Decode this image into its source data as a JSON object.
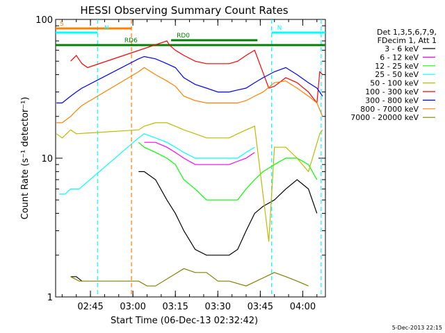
{
  "chart_data": {
    "type": "line",
    "title": "HESSI Observing Summary Count Rates",
    "xlabel": "Start Time (06-Dec-13 02:32:42)",
    "ylabel": "Count Rate (s⁻¹ detector⁻¹)",
    "x_range_minutes_utc": [
      "02:32:42",
      "04:08:00"
    ],
    "ylim": [
      1,
      100
    ],
    "yscale": "log",
    "x_tick_labels": [
      "02:45",
      "03:00",
      "03:15",
      "03:30",
      "03:45",
      "04:00"
    ],
    "y_tick_labels": [
      "1",
      "10",
      "100"
    ],
    "legend": {
      "position": "right",
      "header": [
        "Det 1,3,5,6,7,9,",
        "FDecim 1, Att 1"
      ]
    },
    "series": [
      {
        "name": "3 - 6 keV",
        "color": "#000000",
        "x": [
          "02:38",
          "02:40",
          "02:42",
          "02:45",
          "02:50",
          "02:55",
          "02:58",
          "03:02",
          "03:04",
          "03:08",
          "03:12",
          "03:15",
          "03:18",
          "03:22",
          "03:26",
          "03:30",
          "03:34",
          "03:37",
          "03:40",
          "03:43",
          "03:46",
          "03:50",
          "03:54",
          "03:58",
          "04:02",
          "04:05"
        ],
        "y": [
          1.4,
          1.4,
          1.3,
          null,
          null,
          null,
          null,
          8,
          8,
          7,
          5,
          4,
          3,
          2.2,
          2,
          2,
          2,
          2.2,
          3,
          4,
          4.5,
          5,
          6,
          7,
          6,
          4
        ]
      },
      {
        "name": "6 - 12 keV",
        "color": "#ff00ff",
        "x": [
          "03:04",
          "03:08",
          "03:12",
          "03:15",
          "03:18",
          "03:22",
          "03:26",
          "03:30",
          "03:34",
          "03:37",
          "03:40",
          "03:43"
        ],
        "y": [
          13,
          13,
          12,
          11,
          10,
          9,
          9,
          9,
          9,
          9.5,
          10,
          11
        ]
      },
      {
        "name": "12 - 25 keV",
        "color": "#00ff00",
        "x": [
          "03:02",
          "03:04",
          "03:08",
          "03:12",
          "03:15",
          "03:18",
          "03:22",
          "03:26",
          "03:30",
          "03:34",
          "03:37",
          "03:40",
          "03:43",
          "03:46",
          "03:50",
          "03:54",
          "03:58",
          "04:02",
          "04:05"
        ],
        "y": [
          13,
          12,
          11,
          10,
          9,
          7,
          6,
          5,
          5,
          5,
          5,
          6,
          7,
          8,
          9,
          10,
          10,
          9,
          7
        ]
      },
      {
        "name": "25 - 50 keV",
        "color": "#00ffff",
        "x": [
          "02:34",
          "02:36",
          "02:38",
          "02:41",
          "03:02",
          "03:04",
          "03:08",
          "03:12",
          "03:15",
          "03:18",
          "03:22",
          "03:26",
          "03:30",
          "03:34",
          "03:37",
          "03:40",
          "03:43"
        ],
        "y": [
          5.5,
          5.5,
          6,
          6,
          14,
          15,
          14,
          13,
          12,
          11,
          10,
          10,
          10,
          10,
          10,
          11,
          12
        ]
      },
      {
        "name": "50 - 100 keV",
        "color": "#bbbb00",
        "x": [
          "02:33",
          "02:35",
          "02:38",
          "02:40",
          "03:02",
          "03:04",
          "03:08",
          "03:12",
          "03:15",
          "03:18",
          "03:22",
          "03:26",
          "03:30",
          "03:34",
          "03:37",
          "03:40",
          "03:43",
          "03:48",
          "03:50",
          "03:54",
          "03:58",
          "04:02",
          "04:06",
          "04:07"
        ],
        "y": [
          15,
          14,
          16,
          15,
          16,
          17,
          18,
          18,
          17,
          16,
          15,
          14,
          14,
          14,
          15,
          16,
          17,
          2.5,
          12,
          12,
          10,
          8,
          15,
          16
        ]
      },
      {
        "name": "100 - 300 keV",
        "color": "#ff0000",
        "x": [
          "02:38",
          "02:40",
          "02:42",
          "02:44",
          "03:12",
          "03:13",
          "03:15",
          "03:18",
          "03:22",
          "03:26",
          "03:30",
          "03:34",
          "03:37",
          "03:40",
          "03:43",
          "03:48",
          "03:50",
          "03:54",
          "03:58",
          "04:02",
          "04:05",
          "04:06",
          "04:07"
        ],
        "y": [
          50,
          55,
          48,
          45,
          70,
          65,
          60,
          55,
          50,
          48,
          48,
          48,
          50,
          55,
          60,
          32,
          33,
          38,
          35,
          30,
          25,
          42,
          40
        ]
      },
      {
        "name": "300 - 800 keV",
        "color": "#0000ff",
        "x": [
          "02:33",
          "02:35",
          "02:38",
          "02:40",
          "02:42",
          "03:02",
          "03:04",
          "03:08",
          "03:12",
          "03:15",
          "03:18",
          "03:22",
          "03:26",
          "03:30",
          "03:34",
          "03:37",
          "03:40",
          "03:43",
          "03:46",
          "03:50",
          "03:54",
          "03:58",
          "04:02",
          "04:05",
          "04:07"
        ],
        "y": [
          25,
          25,
          28,
          30,
          32,
          52,
          54,
          52,
          48,
          45,
          38,
          34,
          32,
          30,
          30,
          31,
          32,
          35,
          38,
          42,
          45,
          40,
          35,
          32,
          28
        ]
      },
      {
        "name": "800 - 7000 keV",
        "color": "#ff8000",
        "x": [
          "02:33",
          "02:35",
          "02:38",
          "02:40",
          "02:42",
          "03:02",
          "03:04",
          "03:08",
          "03:12",
          "03:15",
          "03:18",
          "03:22",
          "03:26",
          "03:30",
          "03:34",
          "03:37",
          "03:40",
          "03:43",
          "03:46",
          "03:50",
          "03:54",
          "03:58",
          "04:02",
          "04:05",
          "04:07"
        ],
        "y": [
          18,
          18,
          20,
          22,
          24,
          42,
          45,
          40,
          36,
          33,
          28,
          26,
          25,
          25,
          25,
          25,
          26,
          28,
          30,
          35,
          36,
          32,
          28,
          25,
          20
        ]
      },
      {
        "name": "7000 - 20000 keV",
        "color": "#808000",
        "x": [
          "02:38",
          "02:41",
          "03:02",
          "03:05",
          "03:08",
          "03:18",
          "03:22",
          "03:26",
          "03:30",
          "03:34",
          "03:40",
          "03:50",
          "03:54",
          "03:58",
          "04:02"
        ],
        "y": [
          1.4,
          1.3,
          1.3,
          1.2,
          1.2,
          1.6,
          1.5,
          1.5,
          1.3,
          1.3,
          1.2,
          1.5,
          1.4,
          1.3,
          1.2
        ]
      }
    ],
    "flag_bars": [
      {
        "label": "S",
        "color": "#ff8000",
        "start": "02:32:42",
        "end": "02:59:30"
      },
      {
        "label": "N",
        "color": "#00ffff",
        "start": "02:32:42",
        "end": "02:47:30"
      },
      {
        "label": "N",
        "color": "#00ffff",
        "start": "03:49:00",
        "end": "04:08:00"
      },
      {
        "label": "RD0",
        "color": "#008000",
        "start": "03:13:30",
        "end": "03:44:00"
      },
      {
        "label": "RD6",
        "color": "#008000",
        "start": "02:32:42",
        "end": "04:08:00"
      }
    ],
    "vertical_markers": [
      {
        "time": "02:47:30",
        "color": "#00ffff",
        "style": "dashed"
      },
      {
        "time": "02:59:30",
        "color": "#ff8000",
        "style": "dashed"
      },
      {
        "time": "03:49:00",
        "color": "#00ffff",
        "style": "dashed"
      },
      {
        "time": "04:06:30",
        "color": "#00ffff",
        "style": "dashed"
      }
    ],
    "footer_timestamp": "5-Dec-2013 22:15"
  }
}
